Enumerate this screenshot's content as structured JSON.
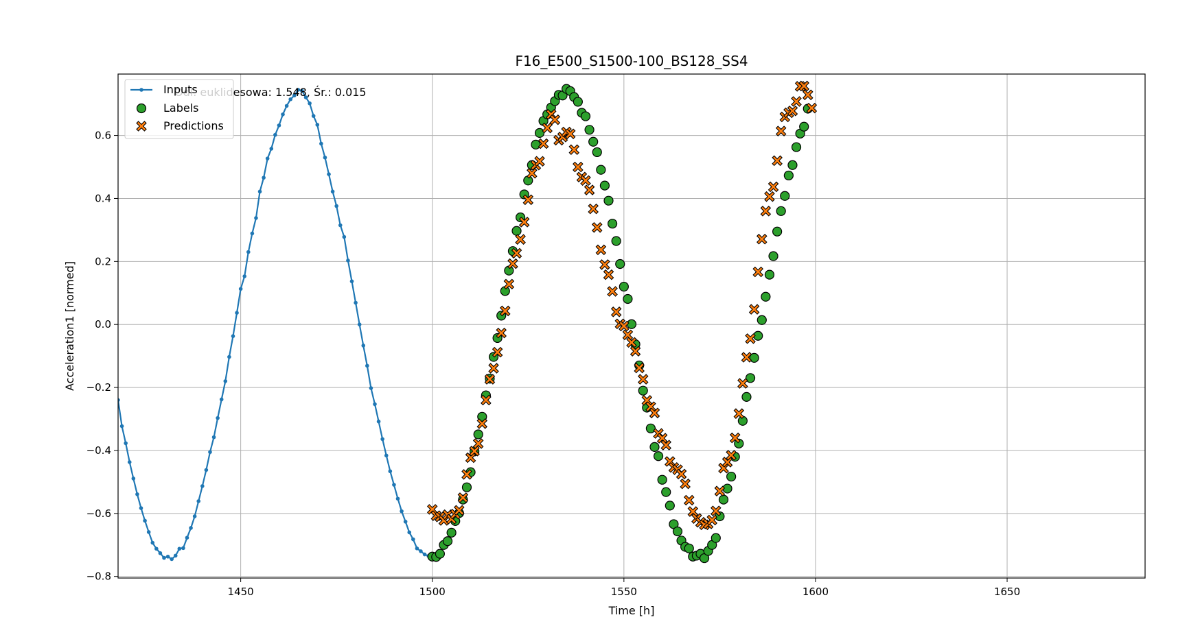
{
  "chart_data": {
    "type": "scatter",
    "title": "F16_E500_S1500-100_BS128_SS4",
    "xlabel": "Time [h]",
    "ylabel": "Acceleration1 [normed]",
    "xlim": [
      1418,
      1686
    ],
    "ylim": [
      -0.805,
      0.795
    ],
    "xticks": [
      1450,
      1500,
      1550,
      1600,
      1650
    ],
    "yticks": [
      -0.8,
      -0.6,
      -0.4,
      -0.2,
      0.0,
      0.2,
      0.4,
      0.6
    ],
    "ytick_labels": [
      "−0.8",
      "−0.6",
      "−0.4",
      "−0.2",
      "0.0",
      "0.2",
      "0.4",
      "0.6"
    ],
    "grid": true,
    "legend_position": "upper-left",
    "annotation": "Odl. euklidesowa: 1.548, Śr.: 0.015",
    "colors": {
      "inputs": "#1f77b4",
      "labels": "#2ca02c",
      "predictions": "#ff7f0e",
      "edge": "#000000",
      "grid": "#b0b0b0"
    },
    "series": [
      {
        "name": "Inputs",
        "style": "line-marker",
        "x": [
          1418,
          1419,
          1420,
          1421,
          1422,
          1423,
          1424,
          1425,
          1426,
          1427,
          1428,
          1429,
          1430,
          1431,
          1432,
          1433,
          1434,
          1435,
          1436,
          1437,
          1438,
          1439,
          1440,
          1441,
          1442,
          1443,
          1444,
          1445,
          1446,
          1447,
          1448,
          1449,
          1450,
          1451,
          1452,
          1453,
          1454,
          1455,
          1456,
          1457,
          1458,
          1459,
          1460,
          1461,
          1462,
          1463,
          1464,
          1465,
          1466,
          1467,
          1468,
          1469,
          1470,
          1471,
          1472,
          1473,
          1474,
          1475,
          1476,
          1477,
          1478,
          1479,
          1480,
          1481,
          1482,
          1483,
          1484,
          1485,
          1486,
          1487,
          1488,
          1489,
          1490,
          1491,
          1492,
          1493,
          1494,
          1495,
          1496,
          1497,
          1498,
          1499
        ],
        "y": [
          -0.24,
          -0.323,
          -0.377,
          -0.437,
          -0.489,
          -0.539,
          -0.583,
          -0.623,
          -0.659,
          -0.693,
          -0.712,
          -0.726,
          -0.741,
          -0.737,
          -0.745,
          -0.734,
          -0.712,
          -0.71,
          -0.677,
          -0.646,
          -0.609,
          -0.561,
          -0.513,
          -0.462,
          -0.405,
          -0.358,
          -0.297,
          -0.238,
          -0.18,
          -0.103,
          -0.037,
          0.037,
          0.113,
          0.153,
          0.23,
          0.289,
          0.338,
          0.422,
          0.466,
          0.527,
          0.558,
          0.602,
          0.632,
          0.667,
          0.694,
          0.715,
          0.727,
          0.745,
          0.742,
          0.721,
          0.702,
          0.662,
          0.634,
          0.574,
          0.53,
          0.477,
          0.422,
          0.376,
          0.315,
          0.278,
          0.203,
          0.137,
          0.069,
          0.0,
          -0.067,
          -0.131,
          -0.202,
          -0.253,
          -0.308,
          -0.364,
          -0.416,
          -0.466,
          -0.509,
          -0.553,
          -0.593,
          -0.626,
          -0.66,
          -0.682,
          -0.711,
          -0.72,
          -0.73,
          -0.735
        ]
      },
      {
        "name": "Labels",
        "style": "circle",
        "x": [
          1500,
          1501,
          1502,
          1503,
          1504,
          1505,
          1506,
          1507,
          1508,
          1509,
          1510,
          1511,
          1512,
          1513,
          1514,
          1515,
          1516,
          1517,
          1518,
          1519,
          1520,
          1521,
          1522,
          1523,
          1524,
          1525,
          1526,
          1527,
          1528,
          1529,
          1530,
          1531,
          1532,
          1533,
          1534,
          1535,
          1536,
          1537,
          1538,
          1539,
          1540,
          1541,
          1542,
          1543,
          1544,
          1545,
          1546,
          1547,
          1548,
          1549,
          1550,
          1551,
          1552,
          1553,
          1554,
          1555,
          1556,
          1557,
          1558,
          1559,
          1560,
          1561,
          1562,
          1563,
          1564,
          1565,
          1566,
          1567,
          1568,
          1569,
          1570,
          1571,
          1572,
          1573,
          1574,
          1575,
          1576,
          1577,
          1578,
          1579,
          1580,
          1581,
          1582,
          1583,
          1584,
          1585,
          1586,
          1587,
          1588,
          1589,
          1590,
          1591,
          1592,
          1593,
          1594,
          1595,
          1596,
          1597,
          1598,
          1599
        ],
        "y": [
          -0.737,
          -0.738,
          -0.728,
          -0.7,
          -0.688,
          -0.661,
          -0.624,
          -0.599,
          -0.556,
          -0.517,
          -0.469,
          -0.403,
          -0.349,
          -0.293,
          -0.225,
          -0.172,
          -0.103,
          -0.043,
          0.028,
          0.106,
          0.171,
          0.233,
          0.297,
          0.34,
          0.413,
          0.457,
          0.506,
          0.571,
          0.608,
          0.646,
          0.667,
          0.689,
          0.709,
          0.729,
          0.727,
          0.748,
          0.741,
          0.722,
          0.707,
          0.672,
          0.661,
          0.618,
          0.58,
          0.547,
          0.491,
          0.441,
          0.393,
          0.32,
          0.265,
          0.192,
          0.12,
          0.081,
          0.001,
          -0.063,
          -0.13,
          -0.21,
          -0.264,
          -0.33,
          -0.389,
          -0.418,
          -0.493,
          -0.532,
          -0.575,
          -0.634,
          -0.657,
          -0.686,
          -0.706,
          -0.711,
          -0.737,
          -0.734,
          -0.728,
          -0.742,
          -0.719,
          -0.7,
          -0.678,
          -0.609,
          -0.556,
          -0.521,
          -0.483,
          -0.42,
          -0.378,
          -0.306,
          -0.23,
          -0.17,
          -0.106,
          -0.036,
          0.014,
          0.088,
          0.158,
          0.217,
          0.295,
          0.36,
          0.408,
          0.473,
          0.506,
          0.563,
          0.606,
          0.628,
          0.685,
          null
        ]
      },
      {
        "name": "Predictions",
        "style": "x",
        "x": [
          1500,
          1501,
          1502,
          1503,
          1504,
          1505,
          1506,
          1507,
          1508,
          1509,
          1510,
          1511,
          1512,
          1513,
          1514,
          1515,
          1516,
          1517,
          1518,
          1519,
          1520,
          1521,
          1522,
          1523,
          1524,
          1525,
          1526,
          1527,
          1528,
          1529,
          1530,
          1531,
          1532,
          1533,
          1534,
          1535,
          1536,
          1537,
          1538,
          1539,
          1540,
          1541,
          1542,
          1543,
          1544,
          1545,
          1546,
          1547,
          1548,
          1549,
          1550,
          1551,
          1552,
          1553,
          1554,
          1555,
          1556,
          1557,
          1558,
          1559,
          1560,
          1561,
          1562,
          1563,
          1564,
          1565,
          1566,
          1567,
          1568,
          1569,
          1570,
          1571,
          1572,
          1573,
          1574,
          1575,
          1576,
          1577,
          1578,
          1579,
          1580,
          1581,
          1582,
          1583,
          1584,
          1585,
          1586,
          1587,
          1588,
          1589,
          1590,
          1591,
          1592,
          1593,
          1594,
          1595,
          1596,
          1597,
          1598,
          1599
        ],
        "y": [
          -0.587,
          -0.607,
          -0.611,
          -0.622,
          -0.604,
          -0.618,
          -0.602,
          -0.59,
          -0.55,
          -0.476,
          -0.423,
          -0.402,
          -0.378,
          -0.315,
          -0.24,
          -0.174,
          -0.139,
          -0.088,
          -0.027,
          0.043,
          0.128,
          0.193,
          0.226,
          0.27,
          0.325,
          0.396,
          0.48,
          0.506,
          0.518,
          0.574,
          0.624,
          0.667,
          0.65,
          0.585,
          0.595,
          0.611,
          0.605,
          0.555,
          0.5,
          0.468,
          0.457,
          0.427,
          0.367,
          0.308,
          0.237,
          0.19,
          0.158,
          0.105,
          0.04,
          0.002,
          -0.005,
          -0.033,
          -0.057,
          -0.085,
          -0.138,
          -0.174,
          -0.241,
          -0.261,
          -0.281,
          -0.346,
          -0.361,
          -0.383,
          -0.435,
          -0.454,
          -0.461,
          -0.475,
          -0.506,
          -0.558,
          -0.594,
          -0.616,
          -0.628,
          -0.636,
          -0.633,
          -0.621,
          -0.592,
          -0.529,
          -0.456,
          -0.437,
          -0.415,
          -0.36,
          -0.283,
          -0.187,
          -0.104,
          -0.045,
          0.048,
          0.167,
          0.271,
          0.36,
          0.406,
          0.437,
          0.52,
          0.614,
          0.659,
          0.672,
          0.678,
          0.708,
          0.756,
          0.757,
          0.729,
          0.687
        ]
      }
    ]
  }
}
